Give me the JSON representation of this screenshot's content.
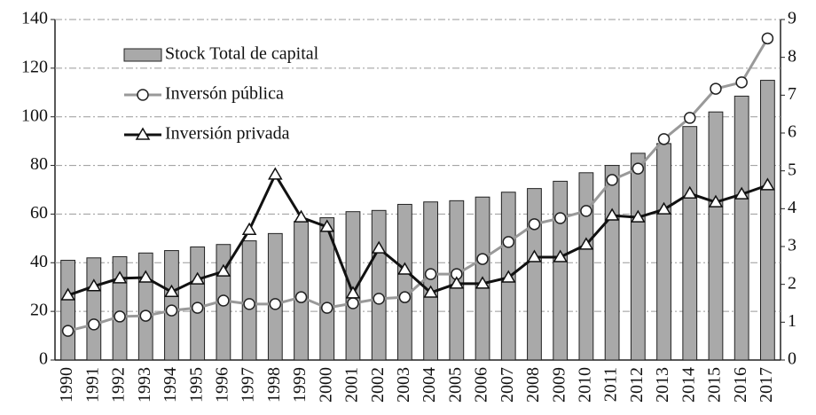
{
  "chart_data": {
    "type": "bar-line",
    "categories": [
      "1990",
      "1991",
      "1992",
      "1993",
      "1994",
      "1995",
      "1996",
      "1997",
      "1998",
      "1999",
      "2000",
      "2001",
      "2002",
      "2003",
      "2004",
      "2005",
      "2006",
      "2007",
      "2008",
      "2009",
      "2010",
      "2011",
      "2012",
      "2013",
      "2014",
      "2015",
      "2016",
      "2017"
    ],
    "series": [
      {
        "name": "Stock Total de capital",
        "type": "bar",
        "axis": "y",
        "color": "#a9a9a9",
        "values": [
          41,
          42,
          42.5,
          44,
          45,
          46.5,
          47.5,
          49,
          52,
          57,
          58.5,
          61,
          61.5,
          64,
          65,
          65.5,
          67,
          69,
          70.5,
          73.5,
          77,
          80,
          85,
          89,
          96,
          102,
          108.5,
          115
        ]
      },
      {
        "name": "Inversón pública",
        "type": "line",
        "axis": "y2",
        "color": "#999999",
        "marker": "circle",
        "values": [
          0.77,
          0.94,
          1.15,
          1.17,
          1.31,
          1.38,
          1.57,
          1.48,
          1.48,
          1.66,
          1.38,
          1.5,
          1.62,
          1.66,
          2.27,
          2.27,
          2.67,
          3.12,
          3.59,
          3.75,
          3.94,
          4.76,
          5.06,
          5.84,
          6.4,
          7.17,
          7.34,
          8.5
        ]
      },
      {
        "name": "Inversión privada",
        "type": "line",
        "axis": "y2",
        "color": "#111111",
        "marker": "triangle",
        "values": [
          1.71,
          1.95,
          2.16,
          2.18,
          1.8,
          2.13,
          2.34,
          3.44,
          4.9,
          3.77,
          3.52,
          1.76,
          2.95,
          2.39,
          1.78,
          2.02,
          2.02,
          2.18,
          2.72,
          2.72,
          3.05,
          3.82,
          3.77,
          3.98,
          4.4,
          4.17,
          4.38,
          4.62
        ]
      }
    ],
    "ylim": [
      0,
      140
    ],
    "yticks": [
      0,
      20,
      40,
      60,
      80,
      100,
      120,
      140
    ],
    "y2lim": [
      0,
      9
    ],
    "y2ticks": [
      0,
      1,
      2,
      3,
      4,
      5,
      6,
      7,
      8,
      9
    ],
    "grid": true,
    "legend": "top-left"
  }
}
